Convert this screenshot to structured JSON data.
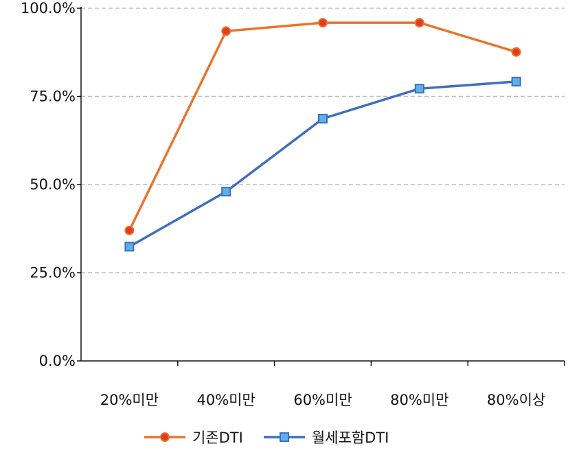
{
  "chart_data": {
    "type": "line",
    "categories": [
      "20%미만",
      "40%미만",
      "60%미만",
      "80%미만",
      "80%이상"
    ],
    "series": [
      {
        "name": "기존DTI",
        "values": [
          37.0,
          93.5,
          95.9,
          95.9,
          87.6
        ],
        "color": "#E8752B",
        "marker": "circle"
      },
      {
        "name": "월세포함DTI",
        "values": [
          32.4,
          48.0,
          68.7,
          77.2,
          79.2
        ],
        "color": "#3F6EBF",
        "marker": "square"
      }
    ],
    "ylim": [
      0,
      100
    ],
    "yticks": [
      0,
      25,
      50,
      75,
      100
    ],
    "ytick_labels": [
      "0.0%",
      "25.0%",
      "50.0%",
      "75.0%",
      "100.0%"
    ],
    "grid": "horizontal-dashed",
    "legend_position": "bottom"
  }
}
